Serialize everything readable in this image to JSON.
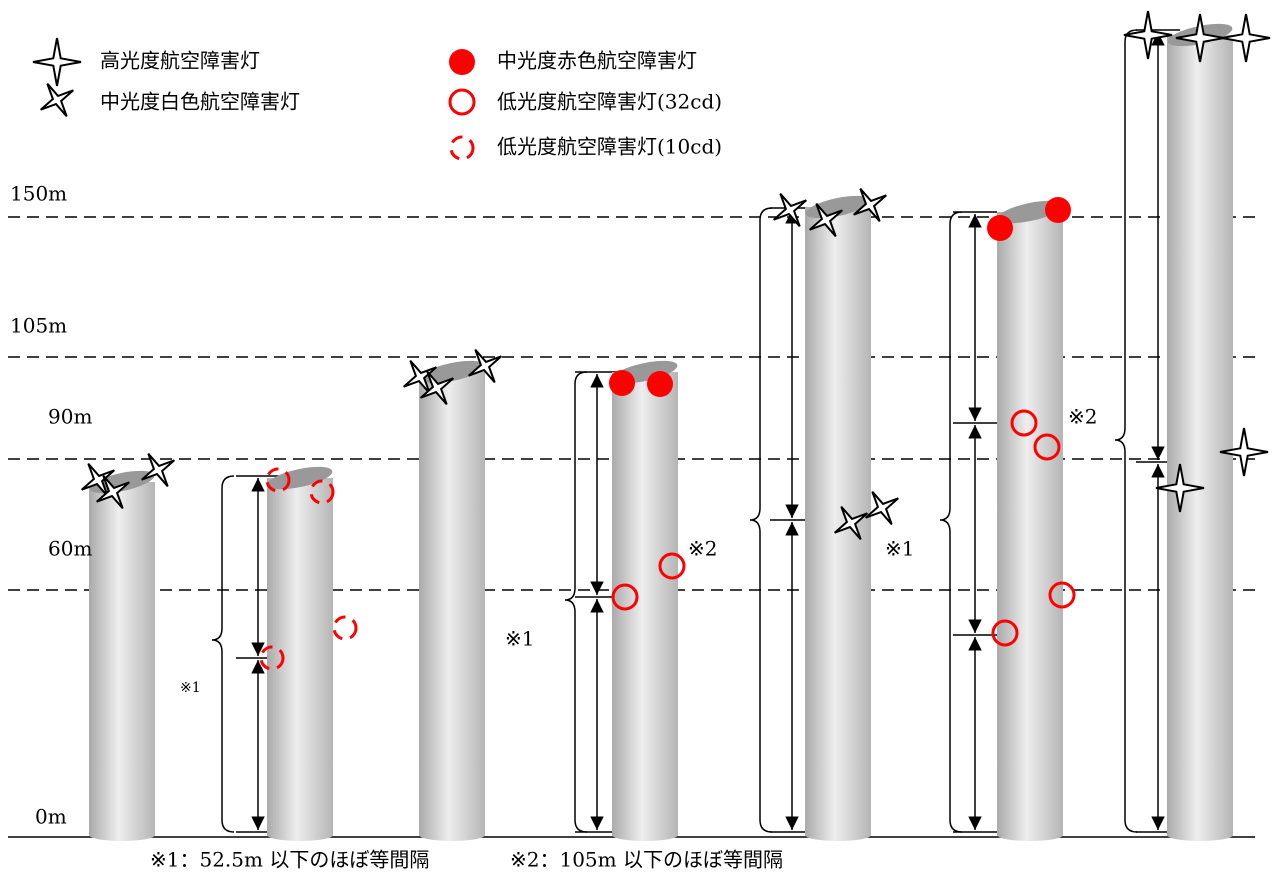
{
  "legend": [
    "高光度航空障害灯",
    "中光度白色航空障害灯",
    "中光度赤色航空障害灯",
    "低光度航空障害灯(32cd)",
    "低光度航空障害灯(10cd)"
  ],
  "heights": [
    "150m",
    "105m",
    "90m",
    "60m",
    "0m"
  ],
  "markers": [
    "※1",
    "※1",
    "※2",
    "※1",
    "※2"
  ],
  "notes": [
    "※1：52.5m 以下のほぼ等間隔",
    "※2：105m 以下のほぼ等間隔"
  ]
}
